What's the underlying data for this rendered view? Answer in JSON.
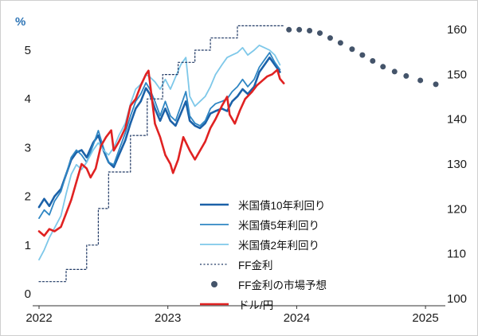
{
  "chart_data": {
    "type": "line",
    "title": "",
    "x_axis": {
      "ticks": [
        2022,
        2023,
        2024,
        2025
      ],
      "range": [
        2022,
        2025.3
      ]
    },
    "left_axis": {
      "label": "%",
      "ticks": [
        0,
        1,
        2,
        3,
        4,
        5
      ],
      "range": [
        0,
        5.6
      ]
    },
    "right_axis": {
      "label": "ドル/円",
      "ticks": [
        100,
        110,
        120,
        130,
        140,
        150,
        160
      ],
      "range": [
        100,
        160
      ]
    },
    "legend_position": "inside-bottom-center",
    "grid": false,
    "series": [
      {
        "name": "米国債10年利回り",
        "axis": "left",
        "style": "line",
        "color": "#1b61a8",
        "width": 2.6,
        "points": [
          [
            2022.0,
            1.78
          ],
          [
            2022.04,
            1.95
          ],
          [
            2022.08,
            1.8
          ],
          [
            2022.12,
            2.0
          ],
          [
            2022.17,
            2.15
          ],
          [
            2022.21,
            2.45
          ],
          [
            2022.25,
            2.75
          ],
          [
            2022.29,
            2.9
          ],
          [
            2022.33,
            2.95
          ],
          [
            2022.37,
            2.8
          ],
          [
            2022.42,
            3.1
          ],
          [
            2022.46,
            3.25
          ],
          [
            2022.5,
            2.95
          ],
          [
            2022.54,
            2.7
          ],
          [
            2022.58,
            2.6
          ],
          [
            2022.62,
            2.85
          ],
          [
            2022.67,
            3.15
          ],
          [
            2022.71,
            3.5
          ],
          [
            2022.75,
            3.8
          ],
          [
            2022.79,
            3.95
          ],
          [
            2022.83,
            4.22
          ],
          [
            2022.86,
            4.1
          ],
          [
            2022.9,
            3.8
          ],
          [
            2022.94,
            3.55
          ],
          [
            2022.98,
            3.8
          ],
          [
            2023.02,
            3.55
          ],
          [
            2023.06,
            3.45
          ],
          [
            2023.1,
            3.7
          ],
          [
            2023.14,
            3.95
          ],
          [
            2023.17,
            3.55
          ],
          [
            2023.21,
            3.45
          ],
          [
            2023.25,
            3.4
          ],
          [
            2023.29,
            3.5
          ],
          [
            2023.33,
            3.7
          ],
          [
            2023.37,
            3.75
          ],
          [
            2023.42,
            3.8
          ],
          [
            2023.46,
            3.75
          ],
          [
            2023.5,
            3.95
          ],
          [
            2023.54,
            4.05
          ],
          [
            2023.58,
            4.2
          ],
          [
            2023.62,
            4.1
          ],
          [
            2023.67,
            4.25
          ],
          [
            2023.71,
            4.55
          ],
          [
            2023.75,
            4.7
          ],
          [
            2023.79,
            4.85
          ],
          [
            2023.83,
            4.7
          ],
          [
            2023.87,
            4.55
          ]
        ]
      },
      {
        "name": "米国債5年利回り",
        "axis": "left",
        "style": "line",
        "color": "#2f86c3",
        "width": 1.8,
        "points": [
          [
            2022.0,
            1.55
          ],
          [
            2022.04,
            1.72
          ],
          [
            2022.08,
            1.62
          ],
          [
            2022.12,
            1.9
          ],
          [
            2022.17,
            2.1
          ],
          [
            2022.21,
            2.45
          ],
          [
            2022.25,
            2.8
          ],
          [
            2022.29,
            2.95
          ],
          [
            2022.33,
            2.85
          ],
          [
            2022.37,
            2.7
          ],
          [
            2022.42,
            3.05
          ],
          [
            2022.46,
            3.35
          ],
          [
            2022.5,
            3.0
          ],
          [
            2022.54,
            2.7
          ],
          [
            2022.58,
            2.65
          ],
          [
            2022.62,
            2.95
          ],
          [
            2022.67,
            3.3
          ],
          [
            2022.71,
            3.65
          ],
          [
            2022.75,
            3.95
          ],
          [
            2022.79,
            4.1
          ],
          [
            2022.83,
            4.33
          ],
          [
            2022.86,
            4.2
          ],
          [
            2022.9,
            3.95
          ],
          [
            2022.94,
            3.65
          ],
          [
            2022.98,
            3.95
          ],
          [
            2023.02,
            3.65
          ],
          [
            2023.06,
            3.55
          ],
          [
            2023.1,
            3.85
          ],
          [
            2023.14,
            4.15
          ],
          [
            2023.17,
            3.65
          ],
          [
            2023.21,
            3.5
          ],
          [
            2023.25,
            3.45
          ],
          [
            2023.29,
            3.55
          ],
          [
            2023.33,
            3.8
          ],
          [
            2023.37,
            3.9
          ],
          [
            2023.42,
            3.95
          ],
          [
            2023.46,
            4.0
          ],
          [
            2023.5,
            4.15
          ],
          [
            2023.54,
            4.25
          ],
          [
            2023.58,
            4.4
          ],
          [
            2023.62,
            4.25
          ],
          [
            2023.67,
            4.4
          ],
          [
            2023.71,
            4.65
          ],
          [
            2023.75,
            4.8
          ],
          [
            2023.79,
            4.95
          ],
          [
            2023.83,
            4.75
          ],
          [
            2023.87,
            4.6
          ]
        ]
      },
      {
        "name": "米国債2年利回り",
        "axis": "left",
        "style": "line",
        "color": "#7ec8e9",
        "width": 1.8,
        "points": [
          [
            2022.0,
            0.7
          ],
          [
            2022.04,
            0.9
          ],
          [
            2022.08,
            1.15
          ],
          [
            2022.12,
            1.35
          ],
          [
            2022.17,
            1.6
          ],
          [
            2022.21,
            2.05
          ],
          [
            2022.25,
            2.45
          ],
          [
            2022.29,
            2.65
          ],
          [
            2022.33,
            2.55
          ],
          [
            2022.37,
            2.7
          ],
          [
            2022.42,
            2.95
          ],
          [
            2022.46,
            3.1
          ],
          [
            2022.5,
            2.95
          ],
          [
            2022.54,
            2.85
          ],
          [
            2022.58,
            3.0
          ],
          [
            2022.62,
            3.25
          ],
          [
            2022.67,
            3.5
          ],
          [
            2022.71,
            3.9
          ],
          [
            2022.75,
            4.2
          ],
          [
            2022.79,
            4.3
          ],
          [
            2022.83,
            4.5
          ],
          [
            2022.86,
            4.45
          ],
          [
            2022.9,
            4.35
          ],
          [
            2022.94,
            4.2
          ],
          [
            2022.98,
            4.4
          ],
          [
            2023.02,
            4.2
          ],
          [
            2023.06,
            4.45
          ],
          [
            2023.1,
            4.7
          ],
          [
            2023.14,
            4.85
          ],
          [
            2023.17,
            4.05
          ],
          [
            2023.21,
            3.85
          ],
          [
            2023.25,
            3.95
          ],
          [
            2023.29,
            4.05
          ],
          [
            2023.33,
            4.25
          ],
          [
            2023.37,
            4.5
          ],
          [
            2023.42,
            4.7
          ],
          [
            2023.46,
            4.85
          ],
          [
            2023.5,
            4.9
          ],
          [
            2023.54,
            4.95
          ],
          [
            2023.58,
            5.05
          ],
          [
            2023.62,
            4.9
          ],
          [
            2023.67,
            5.0
          ],
          [
            2023.71,
            5.1
          ],
          [
            2023.75,
            5.05
          ],
          [
            2023.79,
            5.0
          ],
          [
            2023.83,
            4.9
          ],
          [
            2023.87,
            4.7
          ]
        ]
      },
      {
        "name": "FF金利",
        "axis": "left",
        "style": "dotted",
        "color": "#1f3864",
        "width": 1.2,
        "points": [
          [
            2022.0,
            0.25
          ],
          [
            2022.21,
            0.25
          ],
          [
            2022.21,
            0.5
          ],
          [
            2022.37,
            0.5
          ],
          [
            2022.37,
            1.0
          ],
          [
            2022.46,
            1.0
          ],
          [
            2022.46,
            1.75
          ],
          [
            2022.54,
            1.75
          ],
          [
            2022.54,
            2.5
          ],
          [
            2022.71,
            2.5
          ],
          [
            2022.71,
            3.25
          ],
          [
            2022.84,
            3.25
          ],
          [
            2022.84,
            4.0
          ],
          [
            2022.96,
            4.0
          ],
          [
            2022.96,
            4.5
          ],
          [
            2023.08,
            4.5
          ],
          [
            2023.08,
            4.75
          ],
          [
            2023.21,
            4.75
          ],
          [
            2023.21,
            5.0
          ],
          [
            2023.33,
            5.0
          ],
          [
            2023.33,
            5.25
          ],
          [
            2023.54,
            5.25
          ],
          [
            2023.54,
            5.5
          ],
          [
            2023.9,
            5.5
          ]
        ]
      },
      {
        "name": "FF金利の市場予想",
        "axis": "left",
        "style": "dots",
        "color": "#44546a",
        "radius": 3.5,
        "points": [
          [
            2023.94,
            5.42
          ],
          [
            2024.02,
            5.42
          ],
          [
            2024.1,
            5.4
          ],
          [
            2024.18,
            5.35
          ],
          [
            2024.26,
            5.25
          ],
          [
            2024.34,
            5.15
          ],
          [
            2024.43,
            5.02
          ],
          [
            2024.51,
            4.9
          ],
          [
            2024.59,
            4.78
          ],
          [
            2024.67,
            4.66
          ],
          [
            2024.76,
            4.56
          ],
          [
            2024.85,
            4.47
          ],
          [
            2024.96,
            4.38
          ],
          [
            2025.08,
            4.3
          ]
        ]
      },
      {
        "name": "ドル/円",
        "axis": "right",
        "style": "line",
        "color": "#e02222",
        "width": 2.6,
        "points": [
          [
            2022.0,
            115
          ],
          [
            2022.04,
            114
          ],
          [
            2022.08,
            115.5
          ],
          [
            2022.12,
            115
          ],
          [
            2022.17,
            116
          ],
          [
            2022.21,
            119
          ],
          [
            2022.25,
            122
          ],
          [
            2022.29,
            126
          ],
          [
            2022.33,
            130
          ],
          [
            2022.37,
            129
          ],
          [
            2022.4,
            127
          ],
          [
            2022.44,
            129
          ],
          [
            2022.48,
            134
          ],
          [
            2022.52,
            136
          ],
          [
            2022.56,
            137.5
          ],
          [
            2022.58,
            133
          ],
          [
            2022.62,
            135
          ],
          [
            2022.67,
            138
          ],
          [
            2022.71,
            143
          ],
          [
            2022.75,
            144.5
          ],
          [
            2022.79,
            147.5
          ],
          [
            2022.83,
            150
          ],
          [
            2022.85,
            150.8
          ],
          [
            2022.87,
            146
          ],
          [
            2022.9,
            139
          ],
          [
            2022.94,
            136
          ],
          [
            2022.98,
            132
          ],
          [
            2023.02,
            130
          ],
          [
            2023.04,
            128
          ],
          [
            2023.08,
            131
          ],
          [
            2023.12,
            136
          ],
          [
            2023.17,
            133
          ],
          [
            2023.21,
            131
          ],
          [
            2023.25,
            133
          ],
          [
            2023.29,
            135
          ],
          [
            2023.33,
            138
          ],
          [
            2023.37,
            140
          ],
          [
            2023.42,
            143
          ],
          [
            2023.46,
            145
          ],
          [
            2023.48,
            141
          ],
          [
            2023.52,
            139
          ],
          [
            2023.56,
            142
          ],
          [
            2023.6,
            144.5
          ],
          [
            2023.65,
            146
          ],
          [
            2023.69,
            147.5
          ],
          [
            2023.73,
            148.5
          ],
          [
            2023.77,
            149.5
          ],
          [
            2023.81,
            150
          ],
          [
            2023.85,
            151
          ],
          [
            2023.87,
            149
          ],
          [
            2023.9,
            148
          ]
        ]
      }
    ]
  }
}
